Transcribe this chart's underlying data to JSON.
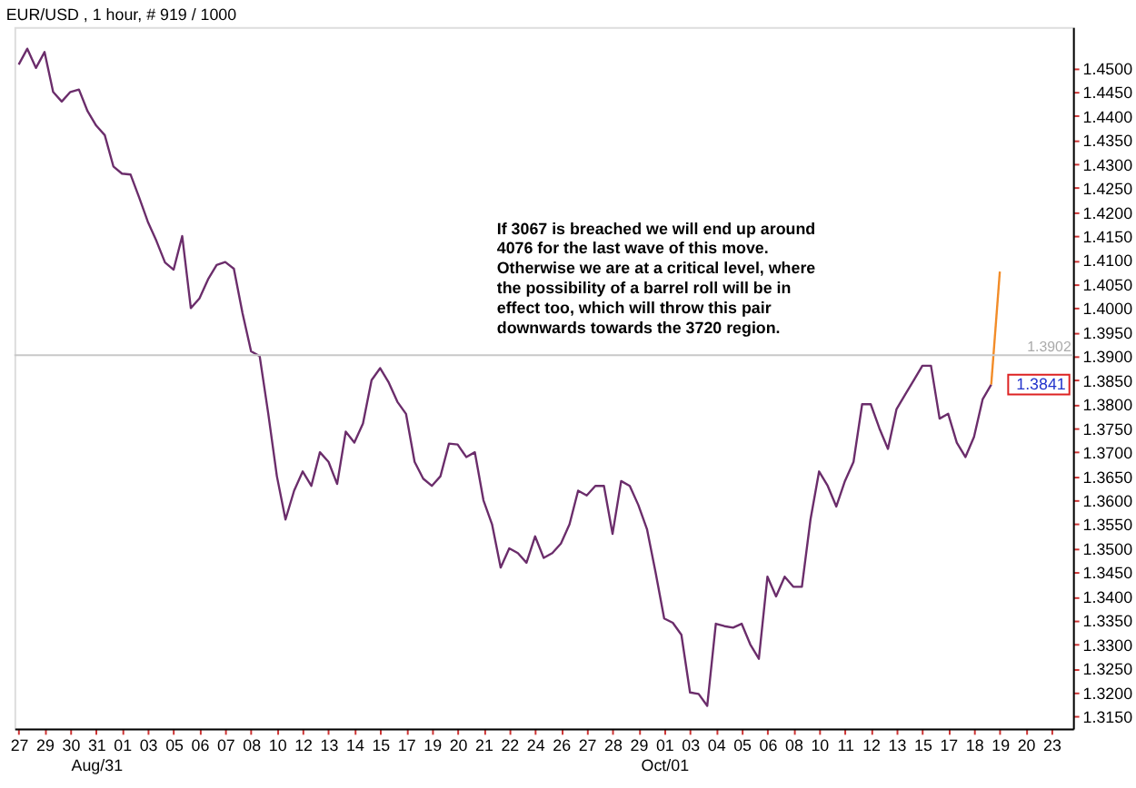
{
  "chart_data": {
    "type": "line",
    "title": "EUR/USD , 1 hour, # 919 / 1000",
    "categories": [
      "27",
      null,
      null,
      "29",
      null,
      null,
      "30",
      null,
      null,
      "31\nAug/31",
      null,
      null,
      "01",
      null,
      null,
      "03",
      null,
      null,
      "05",
      null,
      null,
      "06",
      null,
      null,
      "07",
      null,
      null,
      "08",
      null,
      null,
      "10",
      null,
      null,
      "12",
      null,
      null,
      "13",
      null,
      null,
      "14",
      null,
      null,
      "15",
      null,
      null,
      "17",
      null,
      null,
      "19",
      null,
      null,
      "20",
      null,
      null,
      "21",
      null,
      null,
      "22",
      null,
      null,
      "24",
      null,
      null,
      "26",
      null,
      null,
      "27",
      null,
      null,
      "28",
      null,
      null,
      "29",
      null,
      null,
      "01\nOct/01",
      null,
      null,
      "03",
      null,
      null,
      "04",
      null,
      null,
      "05",
      null,
      null,
      "06",
      null,
      null,
      "08",
      null,
      null,
      "10",
      null,
      null,
      "11",
      null,
      null,
      "12",
      null,
      null,
      "13",
      null,
      null,
      "15",
      null,
      null,
      "17",
      null,
      null,
      "18",
      null,
      null,
      "19",
      null,
      null,
      "20",
      null,
      null,
      "23",
      null,
      null
    ],
    "series": [
      {
        "color": "#6b2d6b",
        "values": [
          1.4507,
          1.454,
          1.45,
          1.4533,
          1.445,
          1.443,
          1.445,
          1.4455,
          1.441,
          1.438,
          1.436,
          1.4295,
          1.428,
          1.4278,
          1.423,
          1.418,
          1.414,
          1.4095,
          1.408,
          1.415,
          1.4,
          1.402,
          1.406,
          1.409,
          1.4096,
          1.4082,
          1.399,
          1.391,
          1.39,
          1.378,
          1.365,
          1.356,
          1.362,
          1.366,
          1.363,
          1.37,
          1.368,
          1.3634,
          1.3743,
          1.372,
          1.376,
          1.385,
          1.3875,
          1.3845,
          1.3805,
          1.378,
          1.368,
          1.3645,
          1.363,
          1.365,
          1.3718,
          1.3716,
          1.369,
          1.37,
          1.36,
          1.355,
          1.346,
          1.35,
          1.349,
          1.347,
          1.3525,
          1.348,
          1.349,
          1.351,
          1.355,
          1.362,
          1.361,
          1.363,
          1.363,
          1.353,
          1.364,
          1.363,
          1.359,
          1.354,
          1.345,
          1.3354,
          1.3345,
          1.332,
          1.32,
          1.3197,
          1.3172,
          1.3343,
          1.3338,
          1.3335,
          1.3343,
          1.33,
          1.327,
          1.3441,
          1.34,
          1.3441,
          1.342,
          1.342,
          1.356,
          1.366,
          1.363,
          1.3587,
          1.364,
          1.368,
          1.38,
          1.38,
          1.375,
          1.3707,
          1.379,
          1.382,
          1.385,
          1.388,
          1.388,
          1.377,
          1.378,
          1.372,
          1.369,
          1.3732,
          1.381,
          1.3841,
          null,
          null,
          null,
          null,
          null,
          null,
          null,
          null,
          null
        ]
      },
      {
        "color": "#f28c28",
        "values": [
          null,
          null,
          null,
          null,
          null,
          null,
          null,
          null,
          null,
          null,
          null,
          null,
          null,
          null,
          null,
          null,
          null,
          null,
          null,
          null,
          null,
          null,
          null,
          null,
          null,
          null,
          null,
          null,
          null,
          null,
          null,
          null,
          null,
          null,
          null,
          null,
          null,
          null,
          null,
          null,
          null,
          null,
          null,
          null,
          null,
          null,
          null,
          null,
          null,
          null,
          null,
          null,
          null,
          null,
          null,
          null,
          null,
          null,
          null,
          null,
          null,
          null,
          null,
          null,
          null,
          null,
          null,
          null,
          null,
          null,
          null,
          null,
          null,
          null,
          null,
          null,
          null,
          null,
          null,
          null,
          null,
          null,
          null,
          null,
          null,
          null,
          null,
          null,
          null,
          null,
          null,
          null,
          null,
          null,
          null,
          null,
          null,
          null,
          null,
          null,
          null,
          null,
          null,
          null,
          null,
          null,
          null,
          null,
          null,
          null,
          null,
          null,
          null,
          1.3841,
          1.4076,
          null,
          null,
          null,
          null,
          null,
          null,
          null,
          null
        ]
      }
    ],
    "ylim": [
      1.3125,
      1.4585
    ],
    "yticks": [
      {
        "value": 1.315,
        "label": "1.3150"
      },
      {
        "value": 1.32,
        "label": "1.3200"
      },
      {
        "value": 1.325,
        "label": "1.3250"
      },
      {
        "value": 1.33,
        "label": "1.3300"
      },
      {
        "value": 1.335,
        "label": "1.3350"
      },
      {
        "value": 1.34,
        "label": "1.3400"
      },
      {
        "value": 1.345,
        "label": "1.3450"
      },
      {
        "value": 1.35,
        "label": "1.3500"
      },
      {
        "value": 1.355,
        "label": "1.3550"
      },
      {
        "value": 1.36,
        "label": "1.3600"
      },
      {
        "value": 1.365,
        "label": "1.3650"
      },
      {
        "value": 1.37,
        "label": "1.3700"
      },
      {
        "value": 1.375,
        "label": "1.3750"
      },
      {
        "value": 1.38,
        "label": "1.3800"
      },
      {
        "value": 1.385,
        "label": "1.3850"
      },
      {
        "value": 1.39,
        "label": "1.3900"
      },
      {
        "value": 1.395,
        "label": "1.3950"
      },
      {
        "value": 1.4,
        "label": "1.4000"
      },
      {
        "value": 1.405,
        "label": "1.4050"
      },
      {
        "value": 1.41,
        "label": "1.4100"
      },
      {
        "value": 1.415,
        "label": "1.4150"
      },
      {
        "value": 1.42,
        "label": "1.4200"
      },
      {
        "value": 1.425,
        "label": "1.4250"
      },
      {
        "value": 1.43,
        "label": "1.4300"
      },
      {
        "value": 1.435,
        "label": "1.4350"
      },
      {
        "value": 1.44,
        "label": "1.4400"
      },
      {
        "value": 1.445,
        "label": "1.4450"
      },
      {
        "value": 1.45,
        "label": "1.4500"
      }
    ],
    "ref_lines": [
      {
        "axis": "y",
        "value": 1.3902,
        "label": "1.3902",
        "color": "#c8c8c8"
      }
    ],
    "annotations": [
      "If 3067 is breached we will end up around\n4076 for the last wave of this move.\nOtherwise we are at a critical level, where\nthe possibility of a barrel roll will be in\neffect too, which will throw this pair\ndownwards towards the 3720 region.",
      {
        "text": "1.3841",
        "y": 1.3841
      }
    ],
    "grid": false,
    "legend": false,
    "marker": "none",
    "line_style": "solid"
  }
}
